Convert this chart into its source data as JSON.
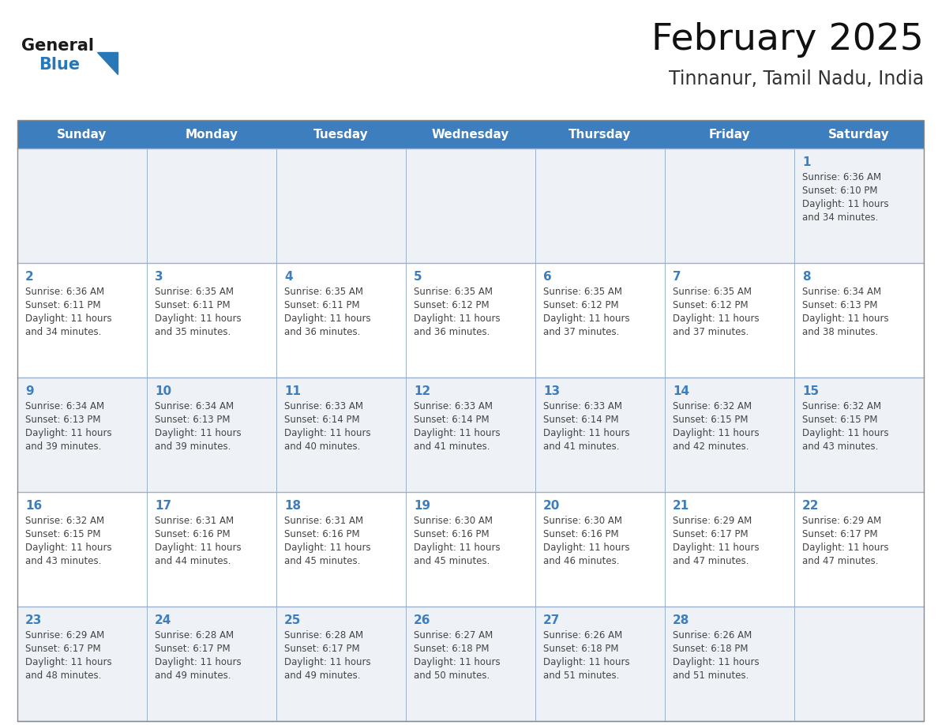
{
  "title": "February 2025",
  "subtitle": "Tinnanur, Tamil Nadu, India",
  "days_of_week": [
    "Sunday",
    "Monday",
    "Tuesday",
    "Wednesday",
    "Thursday",
    "Friday",
    "Saturday"
  ],
  "header_bg_color": "#3d7ebf",
  "header_text_color": "#ffffff",
  "cell_bg_color_odd": "#eef2f7",
  "cell_bg_color_even": "#ffffff",
  "day_num_color": "#3d7ebf",
  "text_color": "#444444",
  "border_color": "#a0aec0",
  "title_color": "#111111",
  "subtitle_color": "#333333",
  "weeks": [
    [
      {
        "day": null,
        "sunrise": null,
        "sunset": null,
        "daylight": null
      },
      {
        "day": null,
        "sunrise": null,
        "sunset": null,
        "daylight": null
      },
      {
        "day": null,
        "sunrise": null,
        "sunset": null,
        "daylight": null
      },
      {
        "day": null,
        "sunrise": null,
        "sunset": null,
        "daylight": null
      },
      {
        "day": null,
        "sunrise": null,
        "sunset": null,
        "daylight": null
      },
      {
        "day": null,
        "sunrise": null,
        "sunset": null,
        "daylight": null
      },
      {
        "day": 1,
        "sunrise": "6:36 AM",
        "sunset": "6:10 PM",
        "daylight": "11 hours\nand 34 minutes."
      }
    ],
    [
      {
        "day": 2,
        "sunrise": "6:36 AM",
        "sunset": "6:11 PM",
        "daylight": "11 hours\nand 34 minutes."
      },
      {
        "day": 3,
        "sunrise": "6:35 AM",
        "sunset": "6:11 PM",
        "daylight": "11 hours\nand 35 minutes."
      },
      {
        "day": 4,
        "sunrise": "6:35 AM",
        "sunset": "6:11 PM",
        "daylight": "11 hours\nand 36 minutes."
      },
      {
        "day": 5,
        "sunrise": "6:35 AM",
        "sunset": "6:12 PM",
        "daylight": "11 hours\nand 36 minutes."
      },
      {
        "day": 6,
        "sunrise": "6:35 AM",
        "sunset": "6:12 PM",
        "daylight": "11 hours\nand 37 minutes."
      },
      {
        "day": 7,
        "sunrise": "6:35 AM",
        "sunset": "6:12 PM",
        "daylight": "11 hours\nand 37 minutes."
      },
      {
        "day": 8,
        "sunrise": "6:34 AM",
        "sunset": "6:13 PM",
        "daylight": "11 hours\nand 38 minutes."
      }
    ],
    [
      {
        "day": 9,
        "sunrise": "6:34 AM",
        "sunset": "6:13 PM",
        "daylight": "11 hours\nand 39 minutes."
      },
      {
        "day": 10,
        "sunrise": "6:34 AM",
        "sunset": "6:13 PM",
        "daylight": "11 hours\nand 39 minutes."
      },
      {
        "day": 11,
        "sunrise": "6:33 AM",
        "sunset": "6:14 PM",
        "daylight": "11 hours\nand 40 minutes."
      },
      {
        "day": 12,
        "sunrise": "6:33 AM",
        "sunset": "6:14 PM",
        "daylight": "11 hours\nand 41 minutes."
      },
      {
        "day": 13,
        "sunrise": "6:33 AM",
        "sunset": "6:14 PM",
        "daylight": "11 hours\nand 41 minutes."
      },
      {
        "day": 14,
        "sunrise": "6:32 AM",
        "sunset": "6:15 PM",
        "daylight": "11 hours\nand 42 minutes."
      },
      {
        "day": 15,
        "sunrise": "6:32 AM",
        "sunset": "6:15 PM",
        "daylight": "11 hours\nand 43 minutes."
      }
    ],
    [
      {
        "day": 16,
        "sunrise": "6:32 AM",
        "sunset": "6:15 PM",
        "daylight": "11 hours\nand 43 minutes."
      },
      {
        "day": 17,
        "sunrise": "6:31 AM",
        "sunset": "6:16 PM",
        "daylight": "11 hours\nand 44 minutes."
      },
      {
        "day": 18,
        "sunrise": "6:31 AM",
        "sunset": "6:16 PM",
        "daylight": "11 hours\nand 45 minutes."
      },
      {
        "day": 19,
        "sunrise": "6:30 AM",
        "sunset": "6:16 PM",
        "daylight": "11 hours\nand 45 minutes."
      },
      {
        "day": 20,
        "sunrise": "6:30 AM",
        "sunset": "6:16 PM",
        "daylight": "11 hours\nand 46 minutes."
      },
      {
        "day": 21,
        "sunrise": "6:29 AM",
        "sunset": "6:17 PM",
        "daylight": "11 hours\nand 47 minutes."
      },
      {
        "day": 22,
        "sunrise": "6:29 AM",
        "sunset": "6:17 PM",
        "daylight": "11 hours\nand 47 minutes."
      }
    ],
    [
      {
        "day": 23,
        "sunrise": "6:29 AM",
        "sunset": "6:17 PM",
        "daylight": "11 hours\nand 48 minutes."
      },
      {
        "day": 24,
        "sunrise": "6:28 AM",
        "sunset": "6:17 PM",
        "daylight": "11 hours\nand 49 minutes."
      },
      {
        "day": 25,
        "sunrise": "6:28 AM",
        "sunset": "6:17 PM",
        "daylight": "11 hours\nand 49 minutes."
      },
      {
        "day": 26,
        "sunrise": "6:27 AM",
        "sunset": "6:18 PM",
        "daylight": "11 hours\nand 50 minutes."
      },
      {
        "day": 27,
        "sunrise": "6:26 AM",
        "sunset": "6:18 PM",
        "daylight": "11 hours\nand 51 minutes."
      },
      {
        "day": 28,
        "sunrise": "6:26 AM",
        "sunset": "6:18 PM",
        "daylight": "11 hours\nand 51 minutes."
      },
      {
        "day": null,
        "sunrise": null,
        "sunset": null,
        "daylight": null
      }
    ]
  ]
}
